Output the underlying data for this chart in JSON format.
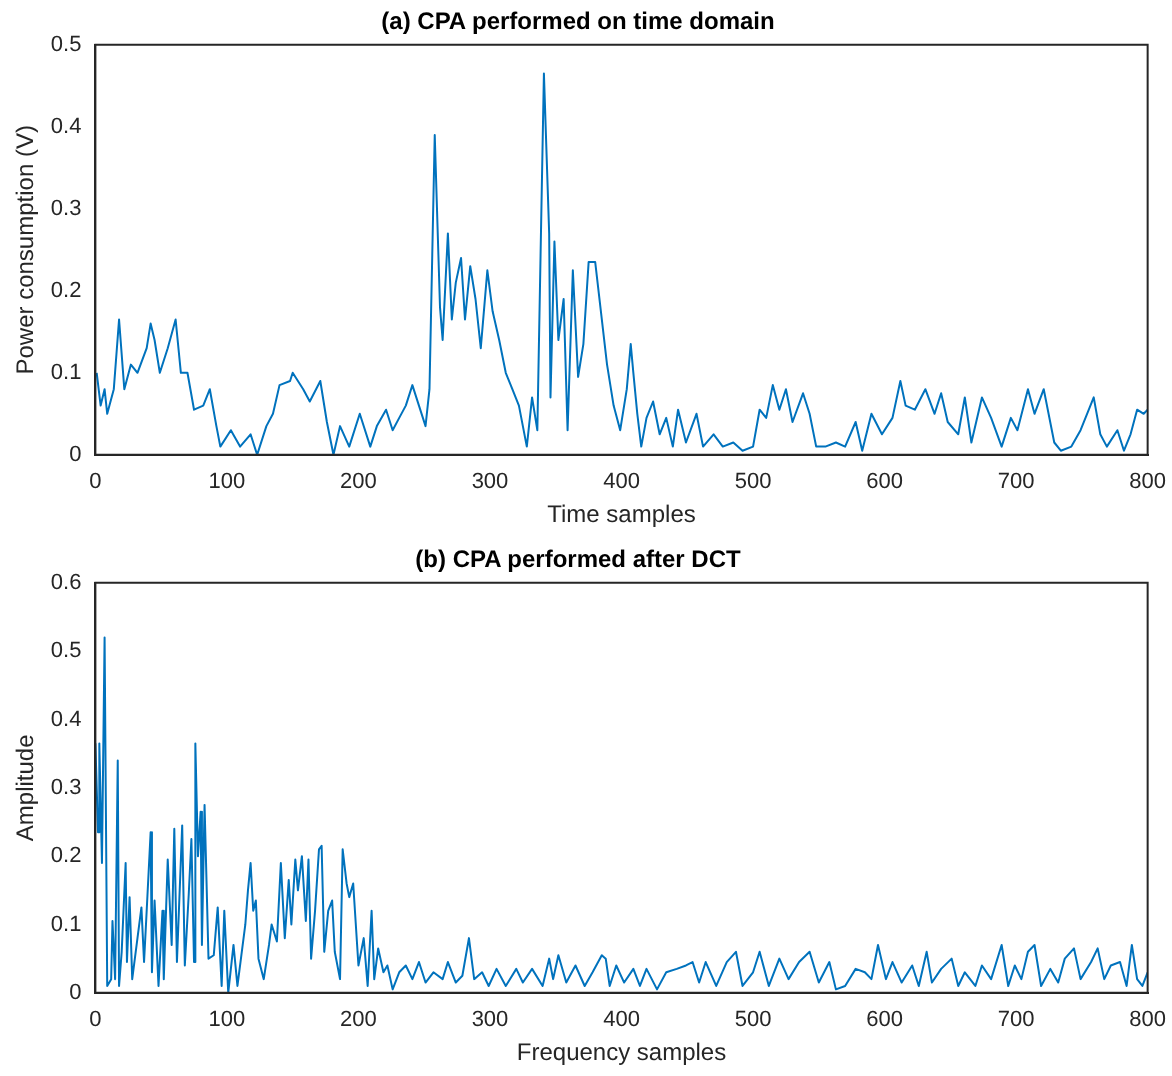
{
  "chart_data": [
    {
      "type": "line",
      "title": "(a) CPA performed on time domain",
      "xlabel": "Time samples",
      "ylabel": "Power consumption (V)",
      "color": "#0072bd",
      "xlim": [
        0,
        800
      ],
      "xticks": [
        0,
        100,
        200,
        300,
        400,
        500,
        600,
        700,
        800
      ],
      "ylim": [
        0,
        0.5
      ],
      "yticks": [
        0,
        0.1,
        0.2,
        0.3,
        0.4,
        0.5
      ],
      "x": [
        1,
        4,
        7,
        9,
        14,
        18,
        22,
        27,
        32,
        39,
        42,
        45,
        49,
        55,
        61,
        65,
        70,
        75,
        82,
        87,
        92,
        95,
        103,
        110,
        118,
        123,
        130,
        135,
        140,
        148,
        150,
        158,
        163,
        171,
        176,
        181,
        186,
        193,
        201,
        209,
        214,
        221,
        226,
        231,
        236,
        241,
        246,
        251,
        254,
        258,
        262,
        264,
        268,
        271,
        274,
        278,
        281,
        285,
        289,
        293,
        298,
        302,
        307,
        312,
        317,
        322,
        328,
        332,
        336,
        341,
        345,
        346,
        349,
        352,
        356,
        359,
        363,
        367,
        371,
        375,
        380,
        389,
        394,
        399,
        404,
        407,
        409,
        412,
        415,
        419,
        424,
        429,
        434,
        439,
        443,
        449,
        457,
        462,
        470,
        477,
        485,
        492,
        500,
        505,
        510,
        515,
        520,
        525,
        530,
        538,
        543,
        548,
        555,
        563,
        570,
        578,
        583,
        590,
        598,
        606,
        612,
        616,
        623,
        631,
        638,
        643,
        648,
        656,
        661,
        666,
        674,
        681,
        689,
        696,
        701,
        709,
        714,
        721,
        729,
        734,
        742,
        749,
        759,
        764,
        769,
        777,
        782,
        787,
        792,
        797,
        800
      ],
      "values": [
        0.1,
        0.06,
        0.08,
        0.05,
        0.08,
        0.165,
        0.08,
        0.11,
        0.1,
        0.13,
        0.16,
        0.14,
        0.1,
        0.13,
        0.165,
        0.1,
        0.1,
        0.055,
        0.06,
        0.08,
        0.035,
        0.01,
        0.03,
        0.01,
        0.025,
        0,
        0.035,
        0.05,
        0.085,
        0.09,
        0.1,
        0.08,
        0.065,
        0.09,
        0.04,
        0,
        0.035,
        0.01,
        0.05,
        0.01,
        0.035,
        0.055,
        0.03,
        0.045,
        0.06,
        0.085,
        0.06,
        0.035,
        0.08,
        0.39,
        0.18,
        0.14,
        0.27,
        0.165,
        0.21,
        0.24,
        0.165,
        0.23,
        0.19,
        0.13,
        0.225,
        0.175,
        0.14,
        0.1,
        0.08,
        0.06,
        0.01,
        0.07,
        0.03,
        0.465,
        0.27,
        0.07,
        0.26,
        0.14,
        0.19,
        0.03,
        0.225,
        0.095,
        0.135,
        0.235,
        0.235,
        0.11,
        0.06,
        0.03,
        0.08,
        0.135,
        0.1,
        0.05,
        0.01,
        0.045,
        0.065,
        0.025,
        0.045,
        0.01,
        0.055,
        0.015,
        0.05,
        0.01,
        0.025,
        0.01,
        0.015,
        0.005,
        0.01,
        0.055,
        0.045,
        0.085,
        0.055,
        0.08,
        0.04,
        0.075,
        0.05,
        0.01,
        0.01,
        0.015,
        0.01,
        0.04,
        0.005,
        0.05,
        0.025,
        0.045,
        0.09,
        0.06,
        0.055,
        0.08,
        0.05,
        0.075,
        0.04,
        0.025,
        0.07,
        0.015,
        0.07,
        0.045,
        0.01,
        0.045,
        0.03,
        0.08,
        0.05,
        0.08,
        0.015,
        0.005,
        0.01,
        0.03,
        0.07,
        0.025,
        0.01,
        0.03,
        0.005,
        0.025,
        0.055,
        0.05,
        0.055
      ]
    },
    {
      "type": "line",
      "title": "(b) CPA performed after DCT",
      "xlabel": "Frequency samples",
      "ylabel": "Amplitude",
      "color": "#0072bd",
      "xlim": [
        0,
        800
      ],
      "xticks": [
        0,
        100,
        200,
        300,
        400,
        500,
        600,
        700,
        800
      ],
      "ylim": [
        0,
        0.6
      ],
      "yticks": [
        0,
        0.1,
        0.2,
        0.3,
        0.4,
        0.5,
        0.6
      ],
      "x": [
        0,
        2,
        3,
        5,
        7,
        9,
        12,
        13,
        15,
        17,
        18,
        20,
        23,
        24,
        26,
        28,
        32,
        35,
        37,
        39,
        42,
        43,
        45,
        48,
        51,
        52,
        55,
        58,
        60,
        62,
        66,
        68,
        71,
        73,
        75,
        76,
        78,
        80,
        81,
        83,
        86,
        90,
        93,
        96,
        98,
        101,
        105,
        108,
        111,
        114,
        116,
        118,
        120,
        122,
        124,
        128,
        132,
        134,
        138,
        141,
        144,
        147,
        149,
        152,
        154,
        157,
        160,
        162,
        164,
        167,
        170,
        172,
        174,
        177,
        180,
        182,
        186,
        188,
        191,
        193,
        196,
        200,
        204,
        207,
        210,
        212,
        215,
        219,
        222,
        226,
        231,
        236,
        241,
        246,
        251,
        257,
        264,
        268,
        274,
        279,
        284,
        288,
        294,
        299,
        305,
        312,
        320,
        325,
        332,
        340,
        345,
        348,
        352,
        358,
        365,
        372,
        378,
        385,
        388,
        391,
        396,
        402,
        409,
        414,
        419,
        427,
        434,
        442,
        449,
        454,
        459,
        464,
        472,
        480,
        487,
        492,
        500,
        505,
        512,
        520,
        527,
        535,
        543,
        550,
        558,
        563,
        570,
        578,
        585,
        590,
        595,
        601,
        606,
        613,
        621,
        626,
        632,
        636,
        643,
        651,
        656,
        661,
        669,
        674,
        681,
        689,
        694,
        699,
        704,
        709,
        714,
        719,
        726,
        732,
        737,
        744,
        749,
        757,
        762,
        767,
        772,
        779,
        784,
        788,
        792,
        796,
        800
      ],
      "values": [
        0.365,
        0.235,
        0.365,
        0.19,
        0.52,
        0.01,
        0.02,
        0.105,
        0.02,
        0.34,
        0.01,
        0.06,
        0.19,
        0.045,
        0.14,
        0.02,
        0.08,
        0.125,
        0.045,
        0.12,
        0.235,
        0.03,
        0.135,
        0.01,
        0.12,
        0.02,
        0.195,
        0.07,
        0.24,
        0.045,
        0.245,
        0.04,
        0.145,
        0.225,
        0.045,
        0.365,
        0.2,
        0.265,
        0.07,
        0.275,
        0.05,
        0.055,
        0.125,
        0.01,
        0.12,
        0,
        0.07,
        0.01,
        0.055,
        0.1,
        0.15,
        0.19,
        0.12,
        0.135,
        0.05,
        0.02,
        0.07,
        0.1,
        0.075,
        0.19,
        0.08,
        0.165,
        0.1,
        0.195,
        0.15,
        0.2,
        0.105,
        0.195,
        0.05,
        0.12,
        0.21,
        0.215,
        0.06,
        0.12,
        0.135,
        0.06,
        0.02,
        0.21,
        0.16,
        0.14,
        0.16,
        0.04,
        0.08,
        0.01,
        0.12,
        0.02,
        0.065,
        0.03,
        0.04,
        0.005,
        0.03,
        0.04,
        0.02,
        0.045,
        0.015,
        0.03,
        0.02,
        0.045,
        0.015,
        0.025,
        0.08,
        0.02,
        0.03,
        0.01,
        0.035,
        0.01,
        0.035,
        0.015,
        0.035,
        0.01,
        0.05,
        0.02,
        0.055,
        0.015,
        0.04,
        0.01,
        0.03,
        0.055,
        0.05,
        0.01,
        0.04,
        0.015,
        0.035,
        0.01,
        0.035,
        0.005,
        0.03,
        0.035,
        0.04,
        0.045,
        0.015,
        0.045,
        0.01,
        0.045,
        0.06,
        0.01,
        0.03,
        0.06,
        0.01,
        0.05,
        0.02,
        0.045,
        0.06,
        0.015,
        0.045,
        0.005,
        0.01,
        0.035,
        0.03,
        0.02,
        0.07,
        0.02,
        0.045,
        0.015,
        0.04,
        0.01,
        0.06,
        0.015,
        0.035,
        0.05,
        0.01,
        0.03,
        0.01,
        0.04,
        0.02,
        0.07,
        0.01,
        0.04,
        0.02,
        0.06,
        0.07,
        0.01,
        0.035,
        0.015,
        0.05,
        0.065,
        0.02,
        0.045,
        0.065,
        0.02,
        0.04,
        0.045,
        0.01,
        0.07,
        0.02,
        0.01,
        0.03
      ]
    }
  ]
}
